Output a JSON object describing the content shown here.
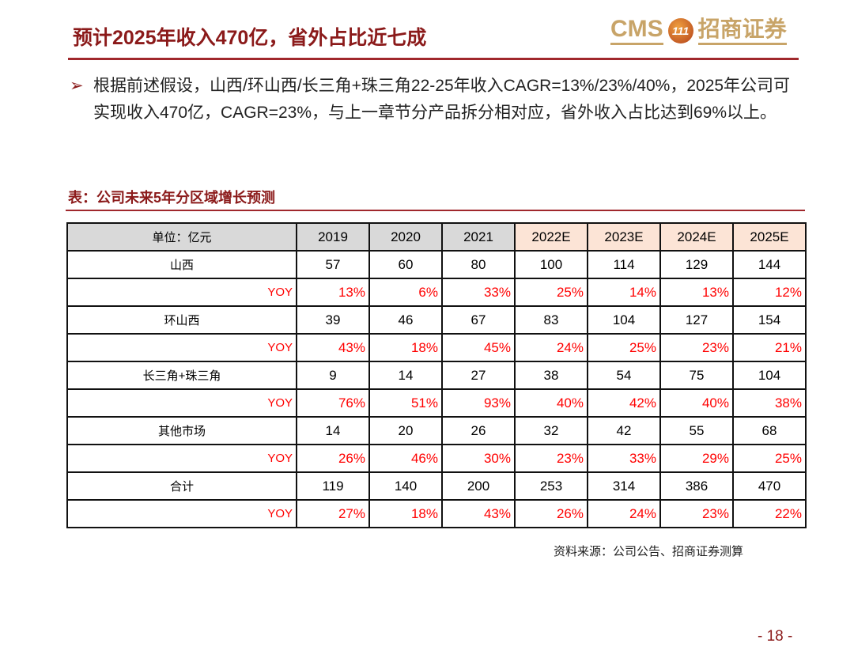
{
  "header": {
    "title": "预计2025年收入470亿，省外占比近七成",
    "logo_text": "CMS",
    "logo_badge": "111",
    "logo_cn": "招商证券"
  },
  "bullet": {
    "icon": "arrow-right-icon",
    "text": "根据前述假设，山西/环山西/长三角+珠三角22-25年收入CAGR=13%/23%/40%，2025年公司可实现收入470亿，CAGR=23%，与上一章节分产品拆分相对应，省外收入占比达到69%以上。"
  },
  "table": {
    "caption": "表：公司未来5年分区域增长预测",
    "unit": "单位：亿元",
    "columns": [
      "2019",
      "2020",
      "2021",
      "2022E",
      "2023E",
      "2024E",
      "2025E"
    ],
    "rows": [
      {
        "label": "山西",
        "values": [
          "57",
          "60",
          "80",
          "100",
          "114",
          "129",
          "144"
        ],
        "yoy_label": "YOY",
        "yoy": [
          "13%",
          "6%",
          "33%",
          "25%",
          "14%",
          "13%",
          "12%"
        ]
      },
      {
        "label": "环山西",
        "values": [
          "39",
          "46",
          "67",
          "83",
          "104",
          "127",
          "154"
        ],
        "yoy_label": "YOY",
        "yoy": [
          "43%",
          "18%",
          "45%",
          "24%",
          "25%",
          "23%",
          "21%"
        ]
      },
      {
        "label": "长三角+珠三角",
        "values": [
          "9",
          "14",
          "27",
          "38",
          "54",
          "75",
          "104"
        ],
        "yoy_label": "YOY",
        "yoy": [
          "76%",
          "51%",
          "93%",
          "40%",
          "42%",
          "40%",
          "38%"
        ]
      },
      {
        "label": "其他市场",
        "values": [
          "14",
          "20",
          "26",
          "32",
          "42",
          "55",
          "68"
        ],
        "yoy_label": "YOY",
        "yoy": [
          "26%",
          "46%",
          "30%",
          "23%",
          "33%",
          "29%",
          "25%"
        ]
      },
      {
        "label": "合计",
        "values": [
          "119",
          "140",
          "200",
          "253",
          "314",
          "386",
          "470"
        ],
        "yoy_label": "YOY",
        "yoy": [
          "27%",
          "18%",
          "43%",
          "26%",
          "24%",
          "23%",
          "22%"
        ]
      }
    ],
    "source": "资料来源：公司公告、招商证券测算"
  },
  "footer": {
    "page": "- 18 -"
  },
  "colors": {
    "brand": "#8b1a1a",
    "gold": "#c8a468",
    "yoy": "#ff0000",
    "estimate_header": "#fce4d6"
  }
}
